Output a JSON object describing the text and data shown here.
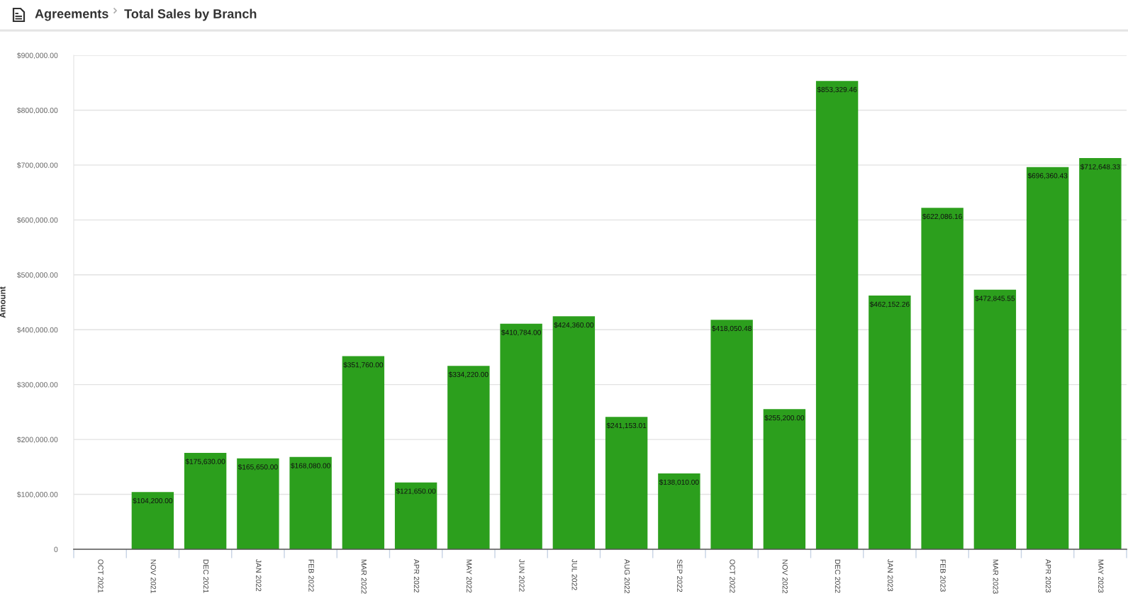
{
  "chart_data": {
    "type": "bar",
    "title": "Agreements",
    "subtitle": "Total Sales by Branch",
    "ylabel": "Amount",
    "categories": [
      "OCT 2021",
      "NOV 2021",
      "DEC 2021",
      "JAN 2022",
      "FEB 2022",
      "MAR 2022",
      "APR 2022",
      "MAY 2022",
      "JUN 2022",
      "JUL 2022",
      "AUG 2022",
      "SEP 2022",
      "OCT 2022",
      "NOV 2022",
      "DEC 2022",
      "JAN 2023",
      "FEB 2023",
      "MAR 2023",
      "APR 2023",
      "MAY 2023"
    ],
    "values": [
      null,
      104200.0,
      175630.0,
      165650.0,
      168080.0,
      351760.0,
      121650.0,
      334220.0,
      410784.0,
      424360.0,
      241153.01,
      138010.0,
      418050.48,
      255200.0,
      853329.46,
      462152.26,
      622086.16,
      472845.55,
      696360.43,
      712648.33
    ],
    "value_labels": [
      null,
      "$104,200.00",
      "$175,630.00",
      "$165,650.00",
      "$168,080.00",
      "$351,760.00",
      "$121,650.00",
      "$334,220.00",
      "$410,784.00",
      "$424,360.00",
      "$241,153.01",
      "$138,010.00",
      "$418,050.48",
      "$255,200.00",
      "$853,329.46",
      "$462,152.26",
      "$622,086.16",
      "$472,845.55",
      "$696,360.43",
      "$712,648.33"
    ],
    "color": "#2c9f1d",
    "ylim": [
      0,
      900000
    ],
    "yticks": [
      0,
      {
        "value": 100000,
        "label": "$100,000.00"
      },
      {
        "value": 200000,
        "label": "$200,000.00"
      },
      {
        "value": 300000,
        "label": "$300,000.00"
      },
      {
        "value": 400000,
        "label": "$400,000.00"
      },
      {
        "value": 500000,
        "label": "$500,000.00"
      },
      {
        "value": 600000,
        "label": "$600,000.00"
      },
      {
        "value": 700000,
        "label": "$700,000.00"
      },
      {
        "value": 800000,
        "label": "$800,000.00"
      },
      {
        "value": 900000,
        "label": "$900,000.00"
      }
    ],
    "grid": "y"
  }
}
